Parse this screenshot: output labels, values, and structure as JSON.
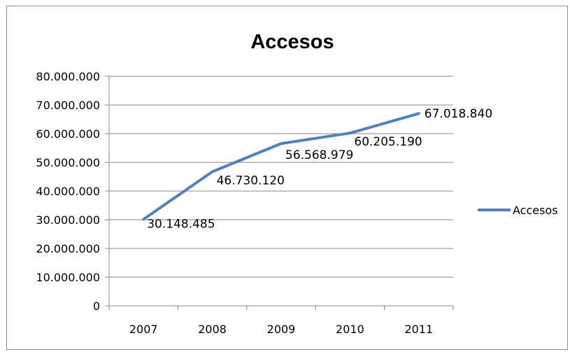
{
  "chart_data": {
    "type": "line",
    "title": "Accesos",
    "categories": [
      "2007",
      "2008",
      "2009",
      "2010",
      "2011"
    ],
    "series": [
      {
        "name": "Accesos",
        "values": [
          30148485,
          46730120,
          56568979,
          60205190,
          67018840
        ],
        "data_labels": [
          "30.148.485",
          "46.730.120",
          "56.568.979",
          "60.205.190",
          "67.018.840"
        ],
        "color": "#4f81bd"
      }
    ],
    "ylim": [
      0,
      80000000
    ],
    "y_ticks": [
      {
        "value": 0,
        "label": "0"
      },
      {
        "value": 10000000,
        "label": "10.000.000"
      },
      {
        "value": 20000000,
        "label": "20.000.000"
      },
      {
        "value": 30000000,
        "label": "30.000.000"
      },
      {
        "value": 40000000,
        "label": "40.000.000"
      },
      {
        "value": 50000000,
        "label": "50.000.000"
      },
      {
        "value": 60000000,
        "label": "60.000.000"
      },
      {
        "value": 70000000,
        "label": "70.000.000"
      },
      {
        "value": 80000000,
        "label": "80.000.000"
      }
    ],
    "grid": true,
    "legend": "right",
    "gridline_color": "#868686"
  }
}
